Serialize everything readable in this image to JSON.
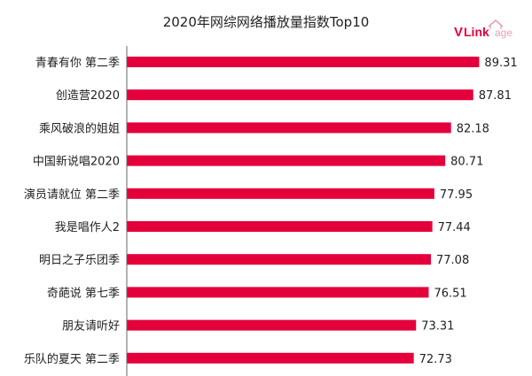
{
  "logo": {
    "text_v": "V",
    "text_link": "Link",
    "text_age": "age",
    "colors": {
      "v": "#e4003a",
      "link": "#e4003a",
      "age": "#e8a0b0"
    }
  },
  "colors": {
    "bar": "#e4003a",
    "baseline": "#666666"
  },
  "chart_data": {
    "type": "bar",
    "orientation": "horizontal",
    "title": "2020年网综网络播放量指数Top10",
    "categories": [
      "青春有你 第二季",
      "创造营2020",
      "乘风破浪的姐姐",
      "中国新说唱2020",
      "演员请就位 第二季",
      "我是唱作人2",
      "明日之子乐团季",
      "奇葩说 第七季",
      "朋友请听好",
      "乐队的夏天 第二季"
    ],
    "values": [
      89.31,
      87.81,
      82.18,
      80.71,
      77.95,
      77.44,
      77.08,
      76.51,
      73.31,
      72.73
    ],
    "data_labels": [
      "89.31",
      "87.81",
      "82.18",
      "80.71",
      "77.95",
      "77.44",
      "77.08",
      "76.51",
      "73.31",
      "72.73"
    ],
    "grid": false,
    "legend": "none"
  }
}
